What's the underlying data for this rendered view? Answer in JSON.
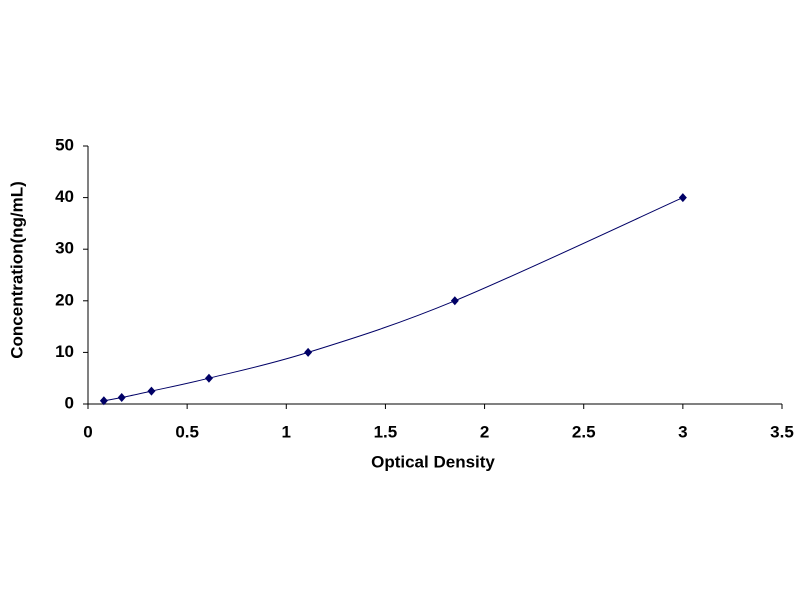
{
  "chart_data": {
    "type": "scatter",
    "x_label": "Optical Density",
    "y_label": "Concentration(ng/mL)",
    "series": [
      {
        "color": "#000066",
        "x": [
          0.08,
          0.17,
          0.32,
          0.61,
          1.11,
          1.85,
          3.0
        ],
        "values": [
          0.625,
          1.25,
          2.5,
          5,
          10,
          20,
          40
        ]
      }
    ],
    "xlim": [
      0,
      3.5
    ],
    "xticks": [
      0,
      0.5,
      1,
      1.5,
      2,
      2.5,
      3,
      3.5
    ],
    "ylim": [
      0,
      50
    ],
    "yticks": [
      0,
      10,
      20,
      30,
      40,
      50
    ],
    "grid": false,
    "trendline": true
  }
}
